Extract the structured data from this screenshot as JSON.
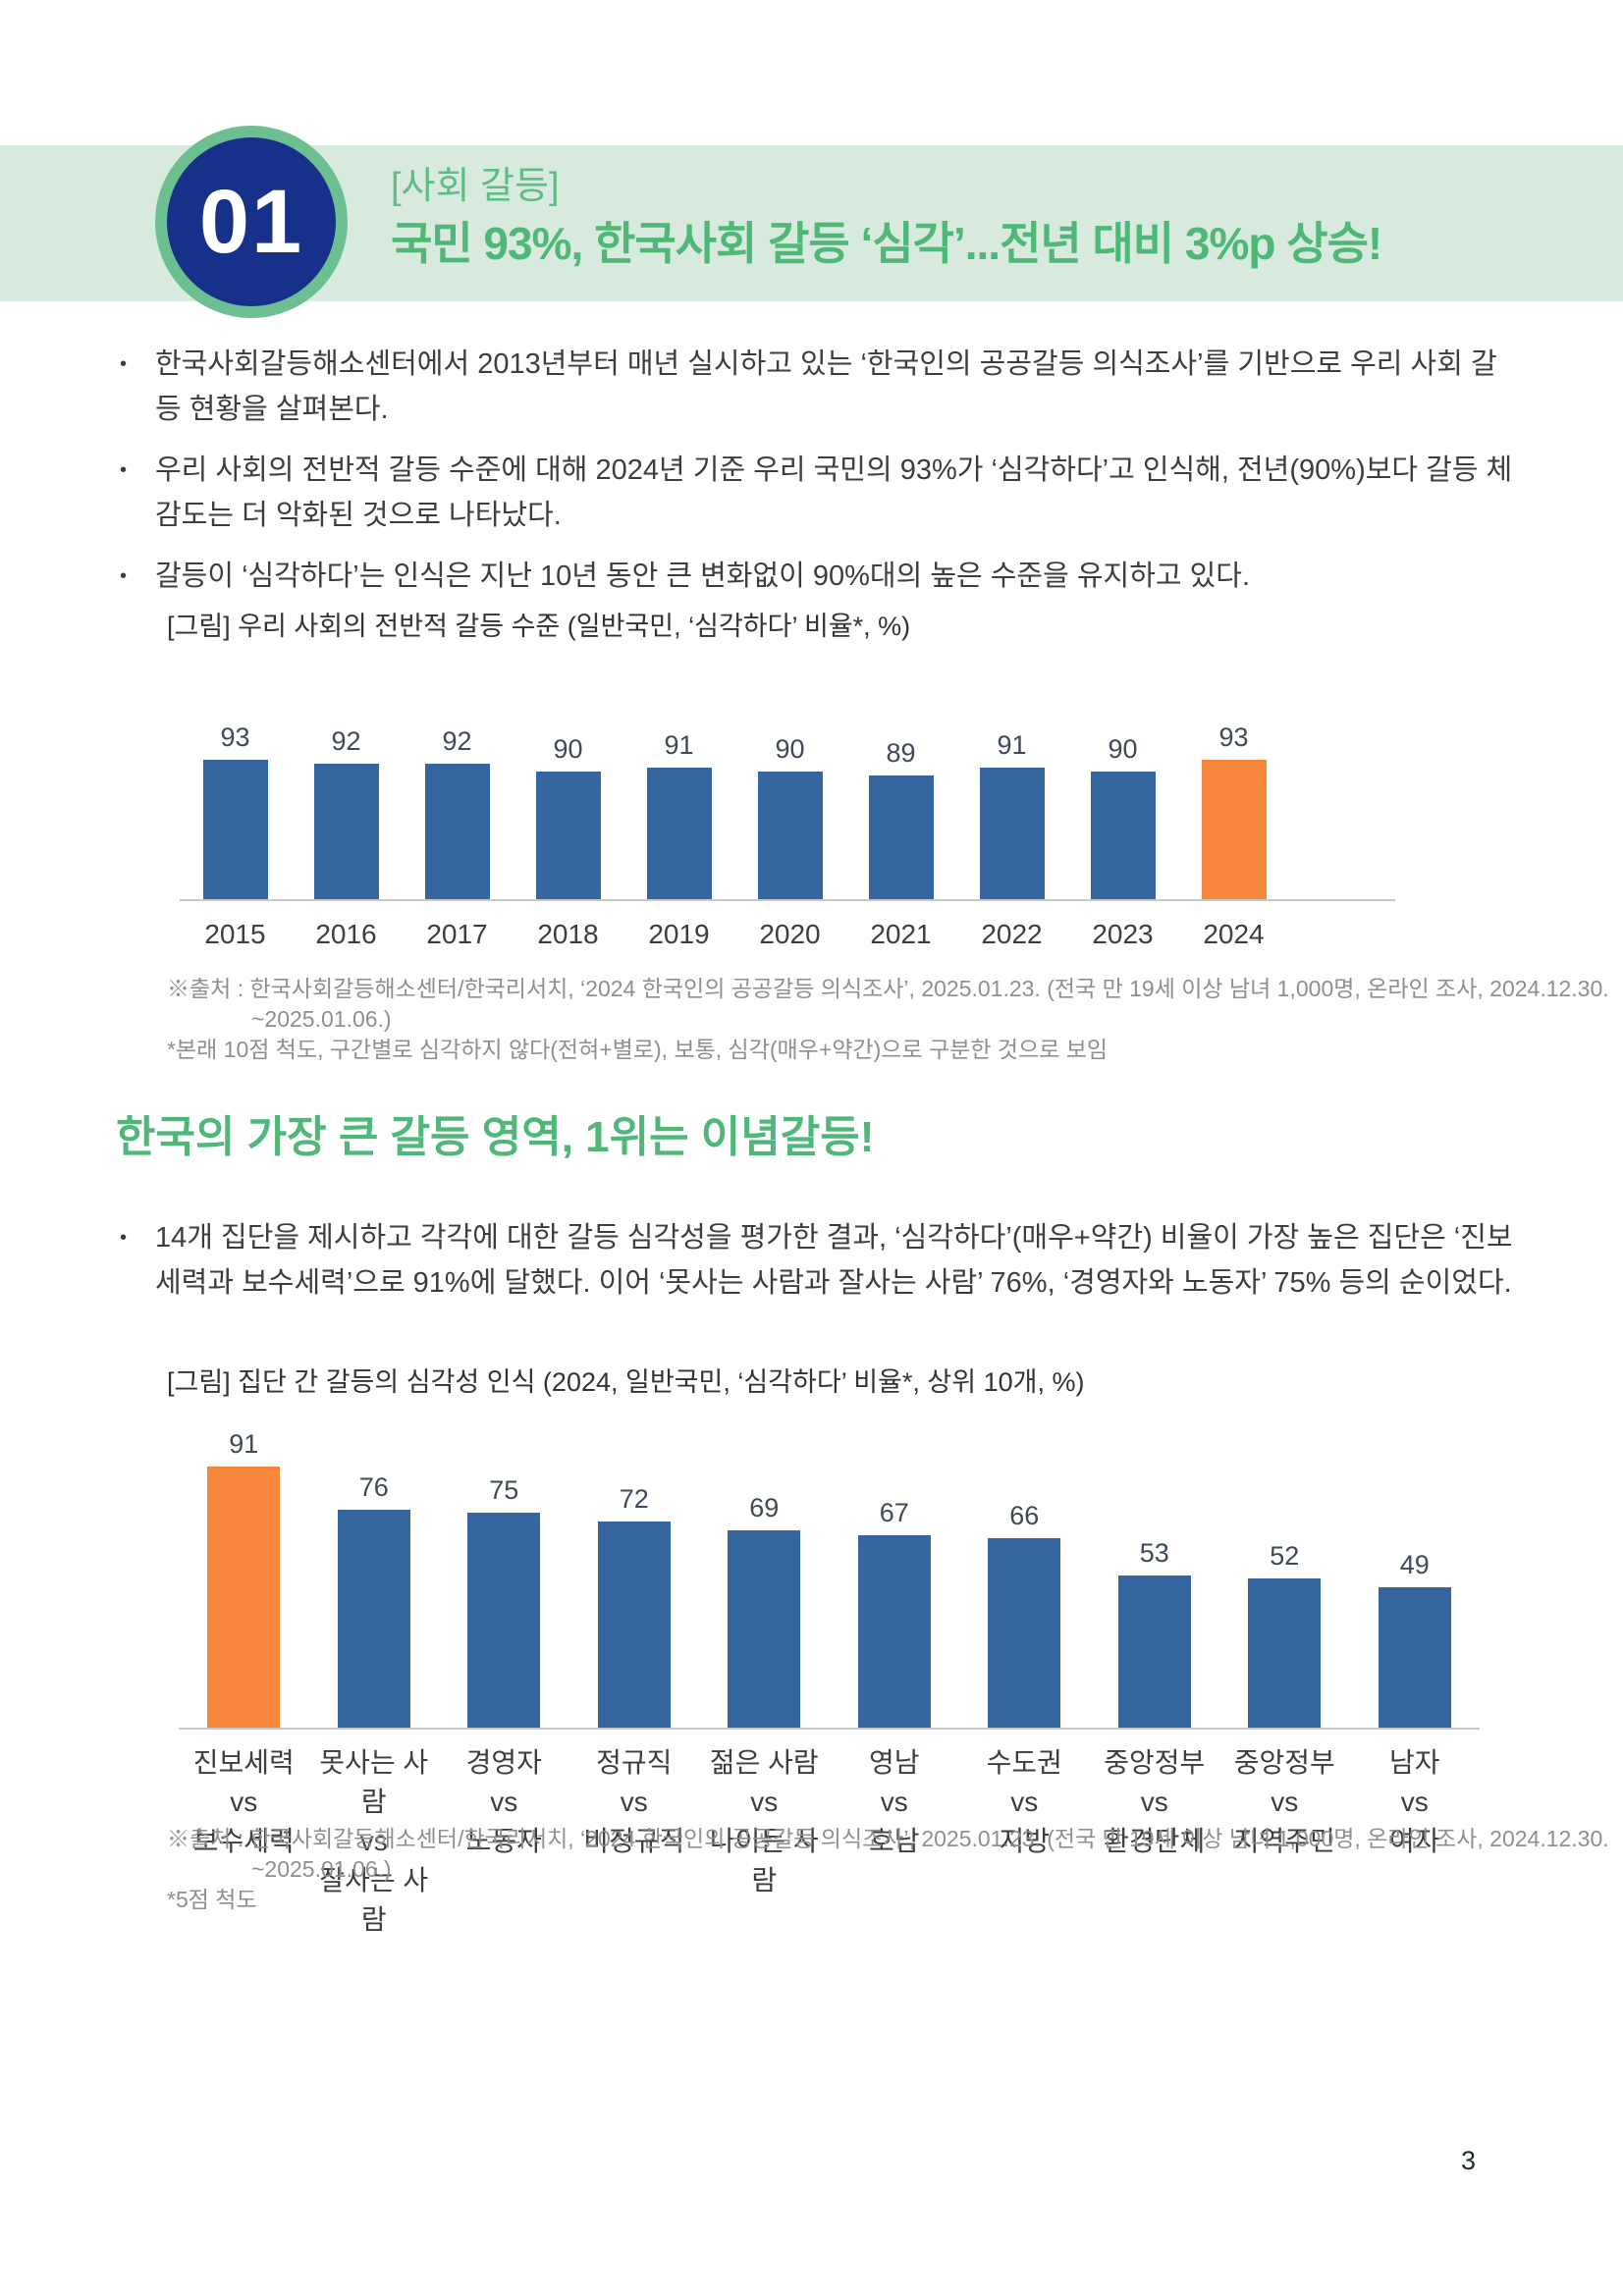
{
  "page_number": "3",
  "header": {
    "badge_number": "01",
    "kicker": "[사회 갈등]",
    "title": "국민 93%, 한국사회 갈등 ‘심각’...전년 대비 3%p 상승!"
  },
  "intro_bullets": [
    "한국사회갈등해소센터에서 2013년부터 매년 실시하고 있는 ‘한국인의 공공갈등 의식조사’를 기반으로 우리 사회 갈등 현황을 살펴본다.",
    "우리 사회의 전반적 갈등 수준에 대해 2024년 기준 우리 국민의 93%가 ‘심각하다’고 인식해, 전년(90%)보다 갈등 체감도는 더 악화된 것으로 나타났다.",
    "갈등이 ‘심각하다’는 인식은 지난 10년 동안 큰 변화없이 90%대의 높은 수준을 유지하고 있다."
  ],
  "section2": {
    "heading": "한국의 가장 큰 갈등 영역, 1위는 이념갈등!",
    "bullets": [
      "14개 집단을 제시하고 각각에 대한 갈등 심각성을 평가한 결과, ‘심각하다’(매우+약간) 비율이 가장 높은 집단은 ‘진보세력과 보수세력’으로 91%에 달했다. 이어 ‘못사는 사람과 잘사는 사람’ 76%, ‘경영자와 노동자’ 75% 등의 순이었다."
    ]
  },
  "chart_data": [
    {
      "type": "bar",
      "title": "[그림] 우리 사회의 전반적 갈등 수준 (일반국민, ‘심각하다’ 비율*, %)",
      "categories": [
        "2015",
        "2016",
        "2017",
        "2018",
        "2019",
        "2020",
        "2021",
        "2022",
        "2023",
        "2024"
      ],
      "values": [
        93,
        92,
        92,
        90,
        91,
        90,
        89,
        91,
        90,
        93
      ],
      "highlight_index": 9,
      "bar_color": "#3566a0",
      "highlight_color": "#f6863c",
      "xlabel": "",
      "ylabel": "",
      "ylim": [
        57,
        95
      ],
      "grid": false,
      "value_labels": true,
      "legend": "none"
    },
    {
      "type": "bar",
      "title": "[그림] 집단 간 갈등의 심각성 인식 (2024, 일반국민, ‘심각하다’ 비율*, 상위 10개, %)",
      "categories": [
        [
          "진보세력",
          "vs",
          "보수세력"
        ],
        [
          "못사는 사람",
          "vs",
          "잘사는 사람"
        ],
        [
          "경영자",
          "vs",
          "노동자"
        ],
        [
          "정규직",
          "vs",
          "비정규직"
        ],
        [
          "젊은 사람",
          "vs",
          "나이든 사람"
        ],
        [
          "영남",
          "vs",
          "호남"
        ],
        [
          "수도권",
          "vs",
          "지방"
        ],
        [
          "중앙정부",
          "vs",
          "환경단체"
        ],
        [
          "중앙정부",
          "vs",
          "지역주민"
        ],
        [
          "남자",
          "vs",
          "여자"
        ]
      ],
      "values": [
        91,
        76,
        75,
        72,
        69,
        67,
        66,
        53,
        52,
        49
      ],
      "highlight_index": 0,
      "bar_color": "#3566a0",
      "highlight_color": "#f6863c",
      "xlabel": "",
      "ylabel": "",
      "ylim": [
        0,
        100
      ],
      "grid": false,
      "value_labels": true,
      "legend": "none"
    }
  ],
  "notes": [
    {
      "source_lines": [
        "※출처 : 한국사회갈등해소센터/한국리서치, ‘2024 한국인의 공공갈등 의식조사’, 2025.01.23. (전국 만 19세 이상 남녀 1,000명, 온라인 조사, 2024.12.30.",
        "~2025.01.06.)"
      ],
      "footnote": "*본래 10점 척도, 구간별로 심각하지 않다(전혀+별로), 보통, 심각(매우+약간)으로 구분한 것으로 보임"
    },
    {
      "source_lines": [
        "※출처 : 한국사회갈등해소센터/한국리서치, ‘2024 한국인의 공공갈등 의식조사’, 2025.01.23. (전국 만 19세 이상 남녀 1,000명, 온라인 조사, 2024.12.30.",
        "~2025.01.06.)"
      ],
      "footnote": "*5점 척도"
    }
  ],
  "colors": {
    "band_green": "#d8e9dd",
    "accent_green": "#4fb878",
    "badge_navy": "#17308a",
    "ring_green": "#6cbf90",
    "bar_blue": "#3566a0",
    "bar_orange": "#f6863c"
  }
}
